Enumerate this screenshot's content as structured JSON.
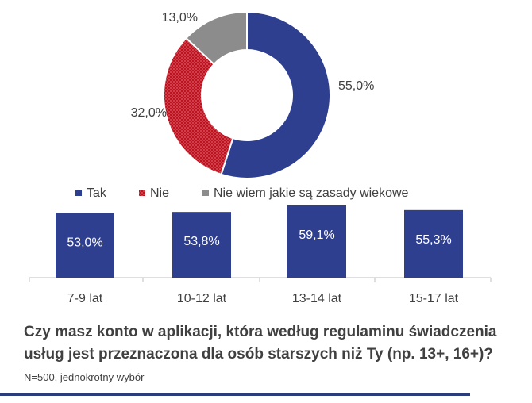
{
  "chart_data": [
    {
      "type": "pie",
      "donut": true,
      "legend_position": "bottom",
      "slices": [
        {
          "name": "Tak",
          "value": 55.0,
          "label": "55,0%",
          "color": "#2f3f8f"
        },
        {
          "name": "Nie",
          "value": 32.0,
          "label": "32,0%",
          "color": "#c0111f",
          "pattern": "dotted"
        },
        {
          "name": "Nie wiem jakie są zasady wiekowe",
          "value": 13.0,
          "label": "13,0%",
          "color": "#8c8c8c"
        }
      ]
    },
    {
      "type": "bar",
      "categories": [
        "7-9 lat",
        "10-12 lat",
        "13-14 lat",
        "15-17 lat"
      ],
      "values": [
        53.0,
        53.8,
        59.1,
        55.3
      ],
      "labels": [
        "53,0%",
        "53,8%",
        "59,1%",
        "55,3%"
      ],
      "color": "#2f3f8f",
      "ylim": [
        0,
        100
      ]
    }
  ],
  "question": {
    "text": "Czy masz konto w aplikacji, która według regulaminu świadczenia usług jest przeznaczona dla osób starszych niż Ty (np. 13+, 16+)?",
    "note": "N=500, jednokrotny wybór"
  }
}
